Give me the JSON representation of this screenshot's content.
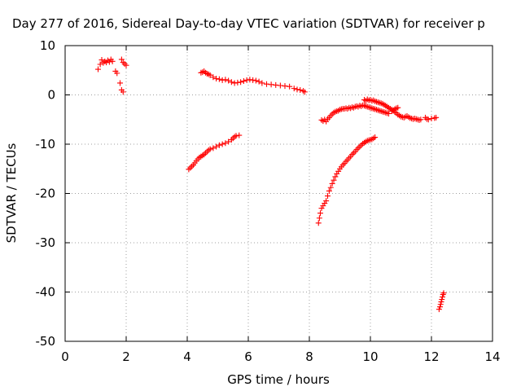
{
  "chart_data": {
    "type": "scatter",
    "title": "Day 277 of 2016, Sidereal Day-to-day VTEC variation (SDTVAR) for receiver p",
    "xlabel": "GPS time / hours",
    "ylabel": "SDTVAR / TECUs",
    "xlim": [
      0,
      14
    ],
    "ylim": [
      -50,
      10
    ],
    "xticks": [
      "0",
      "2",
      "4",
      "6",
      "8",
      "10",
      "12",
      "14"
    ],
    "yticks": [
      "10",
      "0",
      "-10",
      "-20",
      "-30",
      "-40",
      "-50"
    ],
    "grid": true,
    "marker": "plus",
    "series": [
      {
        "color": "#ff0000",
        "points": [
          [
            1.08,
            5.2
          ],
          [
            1.15,
            6.2
          ],
          [
            1.2,
            7.1
          ],
          [
            1.25,
            6.5
          ],
          [
            1.3,
            6.8
          ],
          [
            1.35,
            6.6
          ],
          [
            1.4,
            7.0
          ],
          [
            1.45,
            6.7
          ],
          [
            1.5,
            7.2
          ],
          [
            1.55,
            6.8
          ],
          [
            1.65,
            4.8
          ],
          [
            1.7,
            4.4
          ],
          [
            1.8,
            2.4
          ],
          [
            1.85,
            1.0
          ],
          [
            1.9,
            0.6
          ],
          [
            1.85,
            7.2
          ],
          [
            1.9,
            6.6
          ],
          [
            1.95,
            6.3
          ],
          [
            2.0,
            6.0
          ],
          [
            4.05,
            -15.1
          ],
          [
            4.1,
            -14.8
          ],
          [
            4.15,
            -14.5
          ],
          [
            4.2,
            -14.2
          ],
          [
            4.25,
            -13.8
          ],
          [
            4.3,
            -13.4
          ],
          [
            4.35,
            -13.0
          ],
          [
            4.4,
            -12.7
          ],
          [
            4.45,
            -12.5
          ],
          [
            4.5,
            -12.3
          ],
          [
            4.55,
            -12.1
          ],
          [
            4.6,
            -11.8
          ],
          [
            4.65,
            -11.5
          ],
          [
            4.7,
            -11.2
          ],
          [
            4.75,
            -11.0
          ],
          [
            4.85,
            -10.8
          ],
          [
            4.95,
            -10.5
          ],
          [
            5.05,
            -10.2
          ],
          [
            5.15,
            -10.0
          ],
          [
            5.25,
            -9.8
          ],
          [
            5.35,
            -9.5
          ],
          [
            5.45,
            -9.1
          ],
          [
            5.5,
            -8.8
          ],
          [
            5.55,
            -8.5
          ],
          [
            5.6,
            -8.3
          ],
          [
            5.7,
            -8.2
          ],
          [
            4.45,
            4.5
          ],
          [
            4.5,
            4.6
          ],
          [
            4.55,
            4.8
          ],
          [
            4.6,
            4.5
          ],
          [
            4.65,
            4.3
          ],
          [
            4.7,
            4.2
          ],
          [
            4.75,
            4.0
          ],
          [
            4.85,
            3.6
          ],
          [
            4.95,
            3.3
          ],
          [
            5.05,
            3.2
          ],
          [
            5.15,
            3.0
          ],
          [
            5.25,
            3.1
          ],
          [
            5.35,
            2.9
          ],
          [
            5.45,
            2.6
          ],
          [
            5.55,
            2.4
          ],
          [
            5.65,
            2.5
          ],
          [
            5.75,
            2.6
          ],
          [
            5.85,
            2.8
          ],
          [
            5.95,
            3.0
          ],
          [
            6.05,
            3.1
          ],
          [
            6.15,
            3.0
          ],
          [
            6.25,
            2.9
          ],
          [
            6.35,
            2.7
          ],
          [
            6.45,
            2.4
          ],
          [
            6.6,
            2.2
          ],
          [
            6.75,
            2.1
          ],
          [
            6.9,
            2.0
          ],
          [
            7.05,
            1.9
          ],
          [
            7.2,
            1.8
          ],
          [
            7.35,
            1.7
          ],
          [
            7.5,
            1.3
          ],
          [
            7.6,
            1.1
          ],
          [
            7.7,
            1.0
          ],
          [
            7.8,
            0.8
          ],
          [
            7.85,
            0.6
          ],
          [
            8.3,
            -26.0
          ],
          [
            8.33,
            -25.0
          ],
          [
            8.36,
            -24.0
          ],
          [
            8.4,
            -23.0
          ],
          [
            8.45,
            -22.5
          ],
          [
            8.5,
            -22.0
          ],
          [
            8.55,
            -21.5
          ],
          [
            8.6,
            -20.5
          ],
          [
            8.65,
            -19.5
          ],
          [
            8.7,
            -18.8
          ],
          [
            8.75,
            -18.0
          ],
          [
            8.8,
            -17.3
          ],
          [
            8.85,
            -16.6
          ],
          [
            8.9,
            -16.0
          ],
          [
            8.95,
            -15.5
          ],
          [
            9.0,
            -15.0
          ],
          [
            9.05,
            -14.6
          ],
          [
            9.1,
            -14.2
          ],
          [
            9.15,
            -13.9
          ],
          [
            9.2,
            -13.5
          ],
          [
            9.25,
            -13.2
          ],
          [
            9.3,
            -12.8
          ],
          [
            9.35,
            -12.5
          ],
          [
            9.4,
            -12.1
          ],
          [
            9.45,
            -11.8
          ],
          [
            9.5,
            -11.5
          ],
          [
            9.55,
            -11.1
          ],
          [
            9.6,
            -10.8
          ],
          [
            9.65,
            -10.5
          ],
          [
            9.7,
            -10.2
          ],
          [
            9.75,
            -9.9
          ],
          [
            9.8,
            -9.7
          ],
          [
            9.85,
            -9.5
          ],
          [
            9.9,
            -9.3
          ],
          [
            9.95,
            -9.2
          ],
          [
            10.0,
            -9.1
          ],
          [
            10.05,
            -9.0
          ],
          [
            10.1,
            -8.8
          ],
          [
            10.15,
            -8.6
          ],
          [
            8.4,
            -5.1
          ],
          [
            8.45,
            -5.3
          ],
          [
            8.5,
            -5.0
          ],
          [
            8.55,
            -5.4
          ],
          [
            8.6,
            -4.9
          ],
          [
            8.65,
            -4.6
          ],
          [
            8.7,
            -4.2
          ],
          [
            8.75,
            -3.9
          ],
          [
            8.8,
            -3.6
          ],
          [
            8.85,
            -3.4
          ],
          [
            8.9,
            -3.3
          ],
          [
            8.95,
            -3.2
          ],
          [
            9.0,
            -3.0
          ],
          [
            9.05,
            -2.9
          ],
          [
            9.1,
            -2.8
          ],
          [
            9.15,
            -2.8
          ],
          [
            9.2,
            -2.7
          ],
          [
            9.25,
            -2.8
          ],
          [
            9.3,
            -2.6
          ],
          [
            9.35,
            -2.7
          ],
          [
            9.4,
            -2.5
          ],
          [
            9.45,
            -2.6
          ],
          [
            9.5,
            -2.4
          ],
          [
            9.55,
            -2.3
          ],
          [
            9.6,
            -2.4
          ],
          [
            9.65,
            -2.2
          ],
          [
            9.7,
            -2.3
          ],
          [
            9.75,
            -2.1
          ],
          [
            9.8,
            -2.2
          ],
          [
            9.85,
            -2.3
          ],
          [
            9.9,
            -2.4
          ],
          [
            9.95,
            -2.5
          ],
          [
            10.0,
            -2.6
          ],
          [
            10.05,
            -2.7
          ],
          [
            10.1,
            -2.8
          ],
          [
            10.15,
            -2.9
          ],
          [
            10.2,
            -3.0
          ],
          [
            10.25,
            -3.1
          ],
          [
            10.3,
            -3.2
          ],
          [
            10.35,
            -3.3
          ],
          [
            10.4,
            -3.4
          ],
          [
            10.45,
            -3.5
          ],
          [
            10.5,
            -3.6
          ],
          [
            10.55,
            -3.7
          ],
          [
            10.6,
            -3.8
          ],
          [
            10.7,
            -3.3
          ],
          [
            10.75,
            -3.1
          ],
          [
            10.8,
            -2.9
          ],
          [
            10.85,
            -2.7
          ],
          [
            10.9,
            -2.6
          ],
          [
            9.8,
            -1.0
          ],
          [
            9.85,
            -1.2
          ],
          [
            9.9,
            -0.9
          ],
          [
            9.95,
            -1.1
          ],
          [
            10.0,
            -1.0
          ],
          [
            10.05,
            -1.2
          ],
          [
            10.1,
            -1.1
          ],
          [
            10.15,
            -1.3
          ],
          [
            10.2,
            -1.4
          ],
          [
            10.25,
            -1.5
          ],
          [
            10.3,
            -1.6
          ],
          [
            10.35,
            -1.7
          ],
          [
            10.4,
            -1.8
          ],
          [
            10.45,
            -2.0
          ],
          [
            10.5,
            -2.2
          ],
          [
            10.55,
            -2.4
          ],
          [
            10.6,
            -2.6
          ],
          [
            10.65,
            -2.8
          ],
          [
            10.7,
            -3.0
          ],
          [
            10.75,
            -3.2
          ],
          [
            10.8,
            -3.5
          ],
          [
            10.85,
            -3.7
          ],
          [
            10.9,
            -4.0
          ],
          [
            10.95,
            -4.2
          ],
          [
            11.0,
            -4.4
          ],
          [
            11.05,
            -4.5
          ],
          [
            11.1,
            -4.6
          ],
          [
            11.15,
            -4.4
          ],
          [
            11.2,
            -4.3
          ],
          [
            11.25,
            -4.5
          ],
          [
            11.3,
            -4.7
          ],
          [
            11.35,
            -4.8
          ],
          [
            11.4,
            -4.9
          ],
          [
            11.45,
            -4.8
          ],
          [
            11.5,
            -4.9
          ],
          [
            11.55,
            -5.0
          ],
          [
            11.6,
            -5.1
          ],
          [
            11.65,
            -5.0
          ],
          [
            11.8,
            -4.6
          ],
          [
            11.85,
            -4.9
          ],
          [
            11.9,
            -5.0
          ],
          [
            12.0,
            -4.8
          ],
          [
            12.1,
            -4.7
          ],
          [
            12.15,
            -4.6
          ],
          [
            12.25,
            -43.5
          ],
          [
            12.28,
            -43.0
          ],
          [
            12.3,
            -42.5
          ],
          [
            12.32,
            -42.0
          ],
          [
            12.34,
            -41.5
          ],
          [
            12.36,
            -41.0
          ],
          [
            12.38,
            -40.5
          ],
          [
            12.4,
            -40.2
          ]
        ]
      }
    ]
  }
}
